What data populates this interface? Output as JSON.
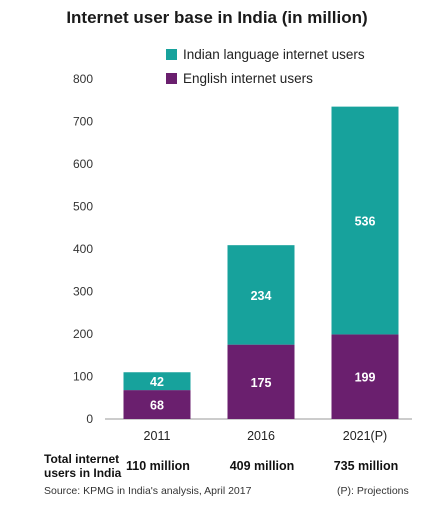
{
  "chart_data": {
    "type": "bar",
    "stacked": true,
    "title": "Internet user base in India (in million)",
    "categories": [
      "2011",
      "2016",
      "2021(P)"
    ],
    "series": [
      {
        "name": "English internet users",
        "values": [
          68,
          175,
          199
        ],
        "color": "#6a1f6e"
      },
      {
        "name": "Indian language internet users",
        "values": [
          42,
          234,
          536
        ],
        "color": "#17a29c"
      }
    ],
    "ylim": [
      0,
      800
    ],
    "yticks": [
      0,
      100,
      200,
      300,
      400,
      500,
      600,
      700,
      800
    ],
    "grid": false,
    "legend": "top-right"
  },
  "totals": {
    "heading": "Total internet users in India",
    "values": [
      "110 million",
      "409 million",
      "735 million"
    ]
  },
  "footer": {
    "source": "Source: KPMG in India's analysis, April 2017",
    "note": "(P): Projections"
  }
}
